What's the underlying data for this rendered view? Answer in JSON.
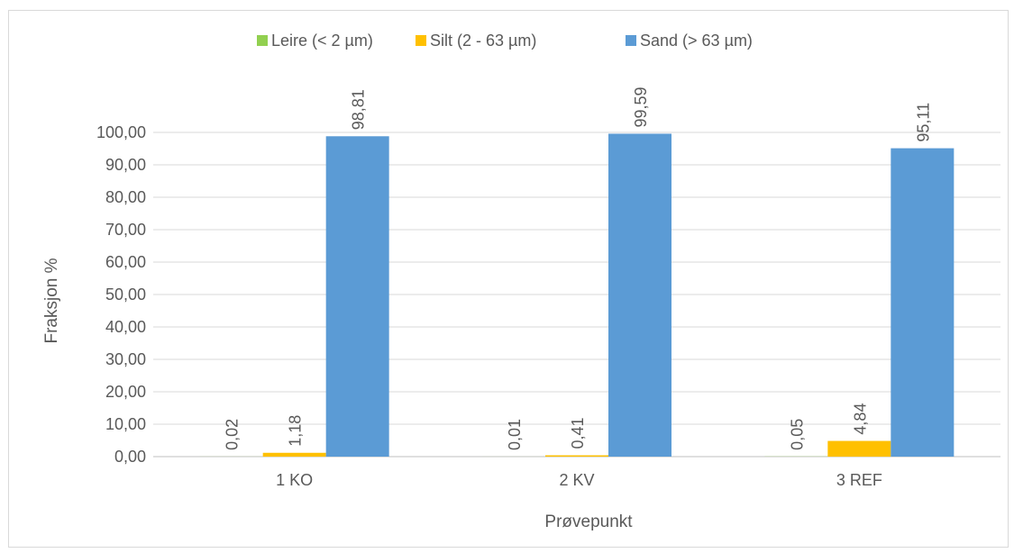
{
  "chart_data": {
    "type": "bar",
    "title": "",
    "xlabel": "Prøvepunkt",
    "ylabel": "Fraksjon %",
    "categories": [
      "1 KO",
      "2 KV",
      "3 REF"
    ],
    "series": [
      {
        "name": "Leire (< 2 µm)",
        "color": "#92d050",
        "values": [
          0.02,
          0.01,
          0.05
        ],
        "labels": [
          "0,02",
          "0,01",
          "0,05"
        ]
      },
      {
        "name": "Silt (2 - 63 µm)",
        "color": "#ffc000",
        "values": [
          1.18,
          0.41,
          4.84
        ],
        "labels": [
          "1,18",
          "0,41",
          "4,84"
        ]
      },
      {
        "name": "Sand (> 63 µm)",
        "color": "#5b9bd5",
        "values": [
          98.81,
          99.59,
          95.11
        ],
        "labels": [
          "98,81",
          "99,59",
          "95,11"
        ]
      }
    ],
    "ylim": [
      0,
      100
    ],
    "yticks": [
      0,
      10,
      20,
      30,
      40,
      50,
      60,
      70,
      80,
      90,
      100
    ],
    "ytick_labels": [
      "0,00",
      "10,00",
      "20,00",
      "30,00",
      "40,00",
      "50,00",
      "60,00",
      "70,00",
      "80,00",
      "90,00",
      "100,00"
    ],
    "grid": true,
    "legend_position": "top"
  }
}
